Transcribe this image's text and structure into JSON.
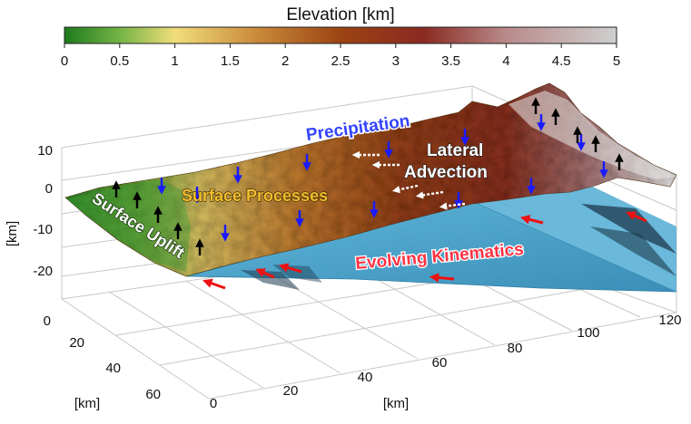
{
  "colorbar": {
    "title": "Elevation [km]",
    "ticks": [
      "0",
      "0.5",
      "1",
      "1.5",
      "2",
      "2.5",
      "3",
      "3.5",
      "4",
      "4.5",
      "5"
    ],
    "colors": [
      "#1e7a1e",
      "#74b445",
      "#f1dd7a",
      "#c9893a",
      "#9b4412",
      "#8a2a22",
      "#b98a8a",
      "#cfcfcf"
    ]
  },
  "axes": {
    "z_ticks": [
      "10",
      "0",
      "-10",
      "-20"
    ],
    "z_unit": "[km]",
    "y_ticks": [
      "0",
      "20",
      "40",
      "60"
    ],
    "y_unit": "[km]",
    "x_ticks": [
      "0",
      "20",
      "40",
      "60",
      "80",
      "100",
      "120"
    ],
    "x_unit": "[km]"
  },
  "labels": {
    "precipitation": "Precipitation",
    "lateral": "Lateral",
    "advection": "Advection",
    "surface_processes": "Surface Processes",
    "surface_uplift": "Surface Uplift",
    "evolving_kinematics": "Evolving Kinematics"
  },
  "colors": {
    "precipitation_arrow": "#1a1aff",
    "uplift_arrow": "#000000",
    "kinematics_arrow": "#ee1111",
    "fault_surface": "#4fa6cc",
    "precipitation_text": "#3344ff",
    "surface_processes_text": "#f2c12e",
    "kinematics_text": "#ff3344"
  }
}
